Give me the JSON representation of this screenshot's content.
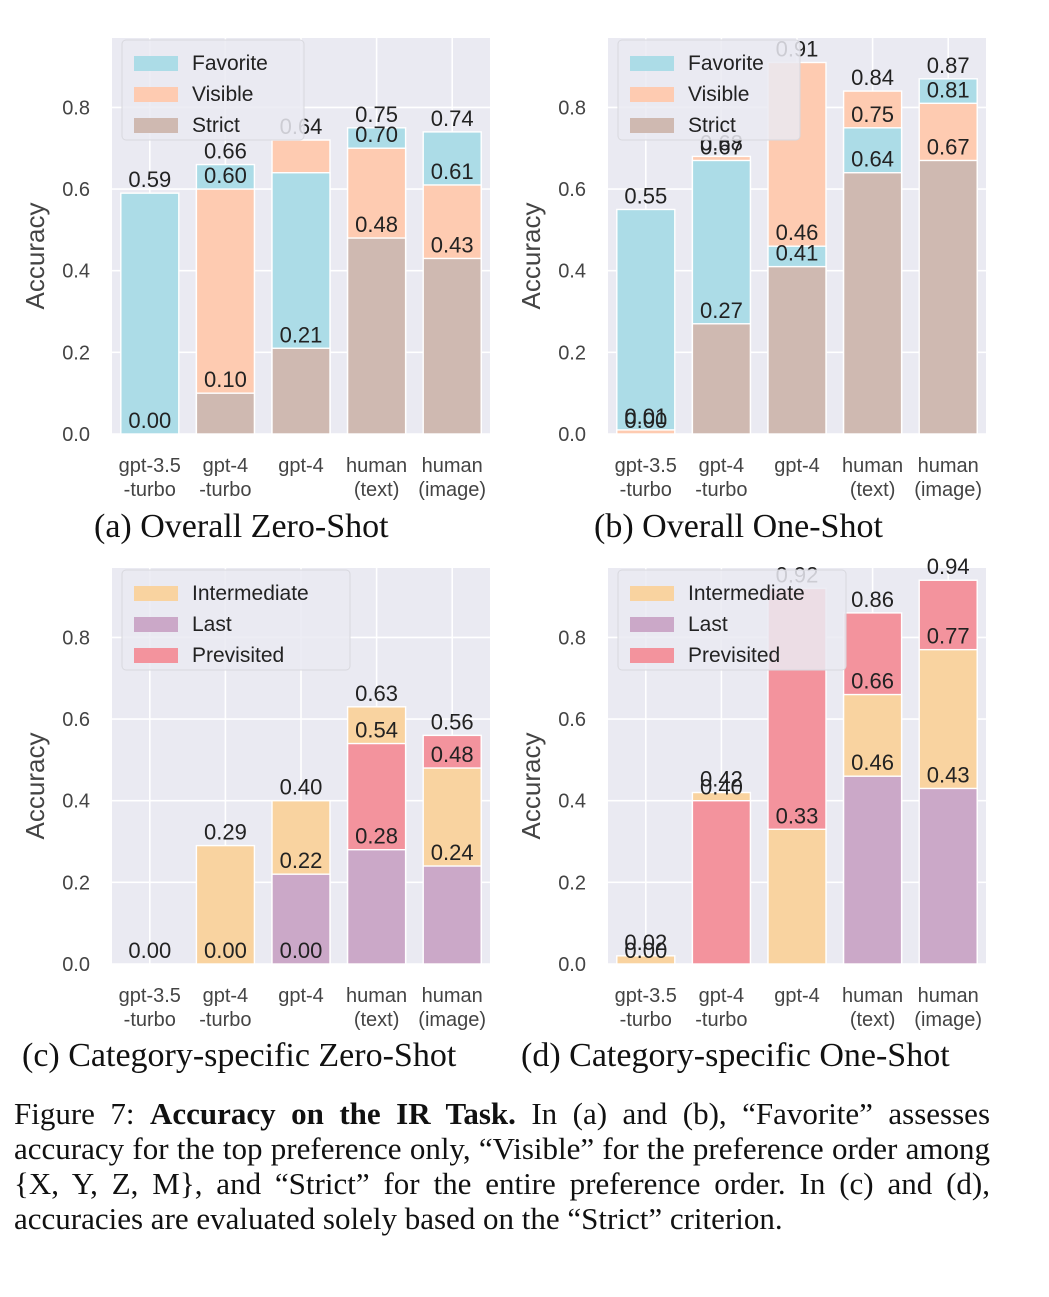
{
  "chart_data": [
    {
      "type": "bar",
      "id": "a",
      "caption": "(a) Overall Zero-Shot",
      "ylabel": "Accuracy",
      "ylim": [
        0,
        0.97
      ],
      "yticks": [
        "0.0",
        "0.2",
        "0.4",
        "0.6",
        "0.8"
      ],
      "categories": [
        [
          "gpt-3.5",
          "-turbo"
        ],
        [
          "gpt-4",
          "-turbo"
        ],
        [
          "gpt-4",
          ""
        ],
        [
          "human",
          "(text)"
        ],
        [
          "human",
          "(image)"
        ]
      ],
      "legend_position": "top-left",
      "grid": true,
      "series": [
        {
          "name": "Favorite",
          "color": "#acdce7",
          "values": [
            0.59,
            0.66,
            0.64,
            0.75,
            0.74
          ],
          "labels": [
            "0.59",
            "0.66",
            "",
            "0.75",
            "0.74"
          ]
        },
        {
          "name": "Visible",
          "color": "#fecbb1",
          "values": [
            0.0,
            0.6,
            0.72,
            0.7,
            0.61
          ],
          "labels": [
            "",
            "0.60",
            "0.72",
            "0.70",
            "0.61"
          ]
        },
        {
          "name": "Strict",
          "color": "#cfb9b1",
          "values": [
            0.0,
            0.1,
            0.21,
            0.48,
            0.43
          ],
          "labels": [
            "0.00",
            "0.10",
            "0.21",
            "0.48",
            "0.43"
          ]
        }
      ],
      "value_label_overrides": [
        {
          "cat": 2,
          "series": 1,
          "text": "0.64"
        }
      ]
    },
    {
      "type": "bar",
      "id": "b",
      "caption": "(b) Overall One-Shot",
      "ylabel": "Accuracy",
      "ylim": [
        0,
        0.97
      ],
      "yticks": [
        "0.0",
        "0.2",
        "0.4",
        "0.6",
        "0.8"
      ],
      "categories": [
        [
          "gpt-3.5",
          "-turbo"
        ],
        [
          "gpt-4",
          "-turbo"
        ],
        [
          "gpt-4",
          ""
        ],
        [
          "human",
          "(text)"
        ],
        [
          "human",
          "(image)"
        ]
      ],
      "legend_position": "top-left",
      "grid": true,
      "series": [
        {
          "name": "Favorite",
          "color": "#acdce7",
          "values": [
            0.55,
            0.67,
            0.46,
            0.75,
            0.87
          ],
          "labels": [
            "0.55",
            "0.67",
            "0.46",
            "0.75",
            "0.87"
          ]
        },
        {
          "name": "Visible",
          "color": "#fecbb1",
          "values": [
            0.01,
            0.68,
            0.91,
            0.84,
            0.81
          ],
          "labels": [
            "0.01",
            "0.68",
            "0.91",
            "0.84",
            "0.81"
          ]
        },
        {
          "name": "Strict",
          "color": "#cfb9b1",
          "values": [
            0.0,
            0.27,
            0.41,
            0.64,
            0.67
          ],
          "labels": [
            "0.00",
            "0.27",
            "0.41",
            "0.64",
            "0.67"
          ]
        }
      ]
    },
    {
      "type": "bar",
      "id": "c",
      "caption": "(c) Category-specific Zero-Shot",
      "ylabel": "Accuracy",
      "ylim": [
        0,
        0.97
      ],
      "yticks": [
        "0.0",
        "0.2",
        "0.4",
        "0.6",
        "0.8"
      ],
      "categories": [
        [
          "gpt-3.5",
          "-turbo"
        ],
        [
          "gpt-4",
          "-turbo"
        ],
        [
          "gpt-4",
          ""
        ],
        [
          "human",
          "(text)"
        ],
        [
          "human",
          "(image)"
        ]
      ],
      "legend_position": "top-left",
      "grid": true,
      "series": [
        {
          "name": "Intermediate",
          "color": "#f9d3a0",
          "values": [
            0.0,
            0.29,
            0.4,
            0.63,
            0.48
          ],
          "labels": [
            "",
            "0.29",
            "0.40",
            "0.63",
            "0.48"
          ]
        },
        {
          "name": "Last",
          "color": "#cba8c8",
          "values": [
            0.0,
            0.0,
            0.22,
            0.28,
            0.24
          ],
          "labels": [
            "0.00",
            "0.00",
            "0.22",
            "0.28",
            "0.24"
          ]
        },
        {
          "name": "Previsited",
          "color": "#f3939d",
          "values": [
            0.0,
            0.0,
            0.0,
            0.54,
            0.56
          ],
          "labels": [
            "",
            "",
            "0.00",
            "0.54",
            "0.56"
          ]
        }
      ]
    },
    {
      "type": "bar",
      "id": "d",
      "caption": "(d) Category-specific One-Shot",
      "ylabel": "Accuracy",
      "ylim": [
        0,
        0.97
      ],
      "yticks": [
        "0.0",
        "0.2",
        "0.4",
        "0.6",
        "0.8"
      ],
      "categories": [
        [
          "gpt-3.5",
          "-turbo"
        ],
        [
          "gpt-4",
          "-turbo"
        ],
        [
          "gpt-4",
          ""
        ],
        [
          "human",
          "(text)"
        ],
        [
          "human",
          "(image)"
        ]
      ],
      "legend_position": "top-left",
      "grid": true,
      "series": [
        {
          "name": "Intermediate",
          "color": "#f9d3a0",
          "values": [
            0.02,
            0.42,
            0.33,
            0.66,
            0.77
          ],
          "labels": [
            "0.02",
            "0.42",
            "0.33",
            "0.66",
            "0.77"
          ]
        },
        {
          "name": "Last",
          "color": "#cba8c8",
          "values": [
            0.0,
            0.0,
            0.0,
            0.46,
            0.43
          ],
          "labels": [
            "0.00",
            "",
            "",
            "0.46",
            "0.43"
          ]
        },
        {
          "name": "Previsited",
          "color": "#f3939d",
          "values": [
            0.0,
            0.4,
            0.92,
            0.86,
            0.94
          ],
          "labels": [
            "",
            "0.40",
            "0.92",
            "0.86",
            "0.94"
          ]
        }
      ]
    }
  ],
  "figure_caption": {
    "label": "Figure 7:",
    "bold": "Accuracy on the IR Task.",
    "text": " In (a) and (b), “Favorite” assesses accuracy for the top preference only, “Visible” for the preference order among {X, Y, Z, M}, and “Strict” for the entire preference order. In (c) and (d), accuracies are evaluated solely based on the “Strict” criterion."
  }
}
